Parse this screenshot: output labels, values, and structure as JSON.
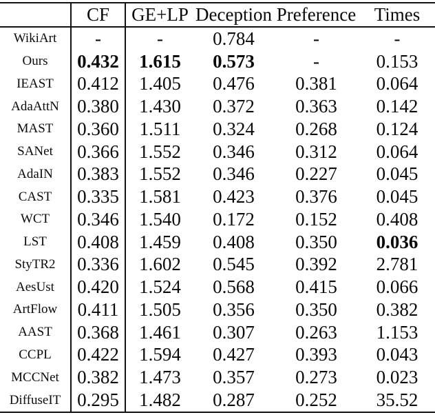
{
  "table": {
    "columns": [
      "",
      "CF",
      "GE+LP",
      "Deception",
      "Preference",
      "Times"
    ],
    "rows": [
      {
        "label": "WikiArt",
        "cells": [
          "-",
          "-",
          "0.784",
          "-",
          "-"
        ],
        "bold": []
      },
      {
        "label": "Ours",
        "cells": [
          "0.432",
          "1.615",
          "0.573",
          "-",
          "0.153"
        ],
        "bold": [
          0,
          1,
          2
        ]
      },
      {
        "label": "IEAST",
        "cells": [
          "0.412",
          "1.405",
          "0.476",
          "0.381",
          "0.064"
        ],
        "bold": []
      },
      {
        "label": "AdaAttN",
        "cells": [
          "0.380",
          "1.430",
          "0.372",
          "0.363",
          "0.142"
        ],
        "bold": []
      },
      {
        "label": "MAST",
        "cells": [
          "0.360",
          "1.511",
          "0.324",
          "0.268",
          "0.124"
        ],
        "bold": []
      },
      {
        "label": "SANet",
        "cells": [
          "0.366",
          "1.552",
          "0.346",
          "0.312",
          "0.064"
        ],
        "bold": []
      },
      {
        "label": "AdaIN",
        "cells": [
          "0.383",
          "1.552",
          "0.346",
          "0.227",
          "0.045"
        ],
        "bold": []
      },
      {
        "label": "CAST",
        "cells": [
          "0.335",
          "1.581",
          "0.423",
          "0.376",
          "0.045"
        ],
        "bold": []
      },
      {
        "label": "WCT",
        "cells": [
          "0.346",
          "1.540",
          "0.172",
          "0.152",
          "0.408"
        ],
        "bold": []
      },
      {
        "label": "LST",
        "cells": [
          "0.408",
          "1.459",
          "0.408",
          "0.350",
          "0.036"
        ],
        "bold": [
          4
        ]
      },
      {
        "label": "StyTR2",
        "cells": [
          "0.336",
          "1.602",
          "0.545",
          "0.392",
          "2.781"
        ],
        "bold": []
      },
      {
        "label": "AesUst",
        "cells": [
          "0.420",
          "1.524",
          "0.568",
          "0.415",
          "0.066"
        ],
        "bold": []
      },
      {
        "label": "ArtFlow",
        "cells": [
          "0.411",
          "1.505",
          "0.356",
          "0.350",
          "0.382"
        ],
        "bold": []
      },
      {
        "label": "AAST",
        "cells": [
          "0.368",
          "1.461",
          "0.307",
          "0.263",
          "1.153"
        ],
        "bold": []
      },
      {
        "label": "CCPL",
        "cells": [
          "0.422",
          "1.594",
          "0.427",
          "0.393",
          "0.043"
        ],
        "bold": []
      },
      {
        "label": "MCCNet",
        "cells": [
          "0.382",
          "1.473",
          "0.357",
          "0.273",
          "0.023"
        ],
        "bold": []
      },
      {
        "label": "DiffuseIT",
        "cells": [
          "0.295",
          "1.482",
          "0.287",
          "0.252",
          "35.52"
        ],
        "bold": []
      }
    ]
  }
}
